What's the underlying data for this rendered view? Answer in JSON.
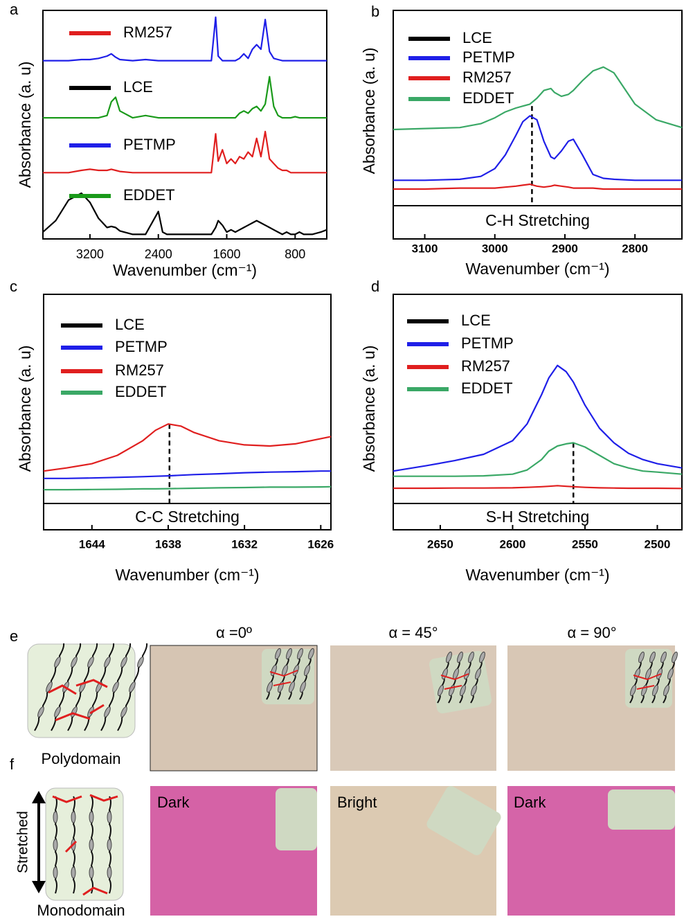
{
  "chart_data": [
    {
      "type": "line",
      "panel": "a",
      "xlabel": "Wavenumber (cm⁻¹)",
      "ylabel": "Absorbance (a. u)",
      "xlim": [
        3750,
        430
      ],
      "xticks": [
        3200,
        2400,
        1600,
        800
      ],
      "ylim": [
        0,
        10
      ],
      "x": [
        3750,
        3600,
        3450,
        3300,
        3200,
        3100,
        3000,
        2950,
        2900,
        2850,
        2700,
        2550,
        2400,
        2350,
        2300,
        2100,
        1900,
        1780,
        1730,
        1700,
        1650,
        1600,
        1550,
        1500,
        1450,
        1400,
        1350,
        1300,
        1250,
        1200,
        1150,
        1100,
        1050,
        1000,
        950,
        900,
        850,
        800,
        750,
        700,
        600,
        500,
        430
      ],
      "series": [
        {
          "name": "LCE",
          "color": "#000000",
          "values": [
            0.3,
            0.8,
            1.7,
            2.0,
            1.6,
            0.9,
            0.5,
            0.55,
            0.5,
            0.35,
            0.2,
            0.2,
            1.2,
            0.3,
            0.2,
            0.2,
            0.2,
            0.2,
            0.5,
            0.8,
            0.6,
            0.3,
            0.4,
            0.3,
            0.4,
            0.5,
            0.6,
            0.7,
            0.8,
            0.7,
            0.6,
            0.5,
            0.4,
            0.3,
            0.2,
            0.3,
            0.2,
            0.2,
            0.3,
            0.2,
            0.2,
            0.3,
            0.4
          ]
        },
        {
          "name": "PETMP",
          "color": "#1f1fe8",
          "values": [
            7.8,
            7.8,
            7.8,
            7.85,
            7.85,
            7.9,
            8.0,
            8.1,
            7.95,
            7.85,
            7.8,
            7.85,
            7.8,
            7.8,
            7.8,
            7.8,
            7.8,
            7.8,
            9.7,
            8.0,
            7.8,
            7.8,
            7.8,
            7.8,
            7.9,
            8.1,
            7.9,
            8.3,
            8.5,
            8.3,
            9.6,
            8.2,
            7.9,
            7.85,
            7.8,
            7.8,
            7.8,
            7.8,
            7.8,
            7.8,
            7.8,
            7.8,
            7.8
          ]
        },
        {
          "name": "RM257",
          "color": "#e01f1f",
          "values": [
            2.9,
            2.9,
            2.9,
            3.0,
            3.05,
            3.0,
            3.0,
            3.05,
            3.0,
            2.95,
            2.9,
            2.9,
            2.9,
            2.9,
            2.9,
            2.9,
            2.9,
            2.9,
            4.6,
            3.4,
            3.9,
            3.3,
            3.5,
            3.3,
            3.6,
            3.5,
            3.8,
            3.6,
            4.4,
            3.6,
            4.7,
            3.5,
            3.3,
            3.1,
            3.0,
            3.0,
            2.9,
            2.9,
            2.9,
            2.9,
            2.9,
            2.9,
            2.9
          ]
        },
        {
          "name": "EDDET",
          "color": "#1a9a1a",
          "values": [
            5.3,
            5.3,
            5.3,
            5.3,
            5.3,
            5.3,
            5.4,
            6.0,
            6.2,
            5.6,
            5.3,
            5.4,
            5.3,
            5.3,
            5.3,
            5.3,
            5.3,
            5.3,
            5.3,
            5.3,
            5.3,
            5.3,
            5.3,
            5.3,
            5.5,
            5.6,
            5.5,
            5.7,
            5.8,
            5.6,
            5.9,
            7.1,
            5.8,
            5.4,
            5.3,
            5.3,
            5.3,
            5.35,
            5.3,
            5.3,
            5.3,
            5.3,
            5.3
          ]
        }
      ]
    },
    {
      "type": "line",
      "panel": "b",
      "xlabel": "Wavenumber (cm⁻¹)",
      "ylabel": "Absorbance (a. u)",
      "annotation": "C-H Stretching",
      "xlim": [
        3145,
        2733
      ],
      "xticks": [
        3100,
        3000,
        2900,
        2800
      ],
      "ylim": [
        0,
        10
      ],
      "vline": {
        "x": 2947,
        "y": 5.1
      },
      "x": [
        3145,
        3100,
        3050,
        3020,
        3000,
        2985,
        2970,
        2960,
        2950,
        2940,
        2930,
        2920,
        2915,
        2905,
        2895,
        2888,
        2875,
        2860,
        2845,
        2830,
        2800,
        2770,
        2733
      ],
      "series": [
        {
          "name": "LCE",
          "color": "#000000",
          "values": [
            null,
            null,
            null,
            null,
            null,
            null,
            null,
            null,
            null,
            null,
            null,
            null,
            null,
            null,
            null,
            null,
            null,
            null,
            null,
            null,
            null,
            null,
            null
          ]
        },
        {
          "name": "PETMP",
          "color": "#1f1fe8",
          "values": [
            1.3,
            1.3,
            1.35,
            1.5,
            1.9,
            2.6,
            3.6,
            4.3,
            4.6,
            4.4,
            3.3,
            2.5,
            2.4,
            2.8,
            3.3,
            3.4,
            2.6,
            1.6,
            1.4,
            1.35,
            1.3,
            1.3,
            1.3
          ]
        },
        {
          "name": "RM257",
          "color": "#e01f1f",
          "values": [
            0.85,
            0.85,
            0.9,
            0.9,
            0.9,
            0.95,
            1.0,
            1.05,
            1.1,
            1.0,
            0.95,
            1.0,
            1.05,
            1.0,
            0.95,
            0.9,
            0.9,
            0.9,
            0.85,
            0.85,
            0.85,
            0.85,
            0.85
          ]
        },
        {
          "name": "EDDET",
          "color": "#3aa866",
          "values": [
            3.9,
            3.95,
            4.0,
            4.2,
            4.5,
            4.8,
            5.0,
            5.1,
            5.2,
            5.5,
            5.9,
            6.0,
            5.8,
            5.6,
            5.7,
            5.9,
            6.4,
            6.9,
            7.1,
            6.8,
            5.2,
            4.4,
            4.0
          ]
        }
      ]
    },
    {
      "type": "line",
      "panel": "c",
      "xlabel": "Wavenumber (cm⁻¹)",
      "ylabel": "Absorbance (a. u)",
      "annotation": "C-C Stretching",
      "xlim": [
        1647.8,
        1625.2
      ],
      "xticks": [
        1644,
        1638,
        1632,
        1626
      ],
      "ylim": [
        0,
        10
      ],
      "vline": {
        "x": 1637.9,
        "y": 3.8
      },
      "x": [
        1647.8,
        1646,
        1644,
        1642,
        1640,
        1639,
        1638,
        1637,
        1636,
        1634,
        1632,
        1630,
        1628,
        1626,
        1625.2
      ],
      "series": [
        {
          "name": "LCE",
          "color": "#000000",
          "values": [
            null,
            null,
            null,
            null,
            null,
            null,
            null,
            null,
            null,
            null,
            null,
            null,
            null,
            null,
            null
          ]
        },
        {
          "name": "PETMP",
          "color": "#1f1fe8",
          "values": [
            1.2,
            1.2,
            1.22,
            1.25,
            1.28,
            1.3,
            1.32,
            1.35,
            1.38,
            1.42,
            1.47,
            1.5,
            1.52,
            1.55,
            1.55
          ]
        },
        {
          "name": "RM257",
          "color": "#e01f1f",
          "values": [
            1.55,
            1.7,
            1.9,
            2.3,
            3.0,
            3.5,
            3.8,
            3.7,
            3.4,
            3.0,
            2.8,
            2.75,
            2.85,
            3.1,
            3.2
          ]
        },
        {
          "name": "EDDET",
          "color": "#3aa866",
          "values": [
            0.66,
            0.66,
            0.67,
            0.68,
            0.7,
            0.7,
            0.71,
            0.72,
            0.73,
            0.75,
            0.76,
            0.78,
            0.78,
            0.79,
            0.8
          ]
        }
      ]
    },
    {
      "type": "line",
      "panel": "d",
      "xlabel": "Wavenumber (cm⁻¹)",
      "ylabel": "Absorbance (a. u)",
      "annotation": "S-H Stretching",
      "xlim": [
        2682.5,
        2483
      ],
      "xticks": [
        2650,
        2600,
        2550,
        2500
      ],
      "ylim": [
        0,
        10
      ],
      "vline": {
        "x": 2558,
        "y": 2.9
      },
      "x": [
        2682.5,
        2660,
        2640,
        2620,
        2600,
        2590,
        2580,
        2575,
        2569,
        2563,
        2558,
        2550,
        2540,
        2530,
        2520,
        2510,
        2500,
        2483
      ],
      "series": [
        {
          "name": "LCE",
          "color": "#000000",
          "values": [
            null,
            null,
            null,
            null,
            null,
            null,
            null,
            null,
            null,
            null,
            null,
            null,
            null,
            null,
            null,
            null,
            null,
            null
          ]
        },
        {
          "name": "PETMP",
          "color": "#1f1fe8",
          "values": [
            1.55,
            1.8,
            2.05,
            2.35,
            3.0,
            3.8,
            5.2,
            6.0,
            6.6,
            6.3,
            5.8,
            4.7,
            3.6,
            2.9,
            2.4,
            2.1,
            1.9,
            1.7
          ]
        },
        {
          "name": "RM257",
          "color": "#e01f1f",
          "values": [
            0.73,
            0.73,
            0.74,
            0.74,
            0.75,
            0.77,
            0.8,
            0.82,
            0.85,
            0.82,
            0.8,
            0.77,
            0.75,
            0.74,
            0.73,
            0.73,
            0.73,
            0.72
          ]
        },
        {
          "name": "EDDET",
          "color": "#3aa866",
          "values": [
            1.3,
            1.3,
            1.3,
            1.32,
            1.4,
            1.6,
            2.1,
            2.5,
            2.75,
            2.85,
            2.9,
            2.7,
            2.3,
            1.9,
            1.7,
            1.55,
            1.5,
            1.4
          ]
        }
      ]
    }
  ],
  "micrographs": {
    "panels": [
      "e",
      "f"
    ],
    "columns": [
      "α =0º",
      "α = 45°",
      "α = 90°"
    ],
    "row_e_label": "Polydomain",
    "row_f_label": "Monodomain",
    "stretch_label": "Stretched",
    "states": [
      "Dark",
      "Bright",
      "Dark"
    ]
  }
}
